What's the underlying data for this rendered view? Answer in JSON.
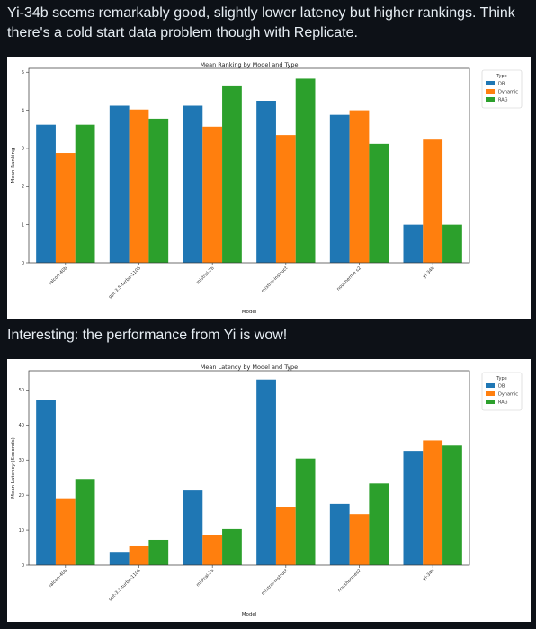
{
  "messages": {
    "first": "Yi-34b seems remarkably good, slightly lower latency but higher rankings. Think there's a cold start data problem though with Replicate.",
    "second": "Interesting: the performance from Yi is wow!"
  },
  "chart_data": [
    {
      "type": "bar",
      "title": "Mean Ranking by Model and Type",
      "xlabel": "Model",
      "ylabel": "Mean Ranking",
      "categories": [
        "falcon-40b",
        "gpt-3.5-turbo-1106",
        "mistral-7b",
        "mixtral-instruct",
        "nousherme s2",
        "yi-34b"
      ],
      "ylim": [
        0,
        5.1
      ],
      "yticks": [
        0,
        1,
        2,
        3,
        4,
        5
      ],
      "legend": {
        "title": "Type",
        "placement": "outside-top-right"
      },
      "series": [
        {
          "name": "DB",
          "color": "#1f77b4",
          "values": [
            3.62,
            4.12,
            4.12,
            4.25,
            3.88,
            1.0
          ]
        },
        {
          "name": "Dynamic",
          "color": "#ff7f0e",
          "values": [
            2.88,
            4.02,
            3.57,
            3.35,
            4.0,
            3.23
          ]
        },
        {
          "name": "RAG",
          "color": "#2ca02c",
          "values": [
            3.62,
            3.78,
            4.63,
            4.83,
            3.12,
            1.0
          ]
        }
      ]
    },
    {
      "type": "bar",
      "title": "Mean Latency by Model and Type",
      "xlabel": "Model",
      "ylabel": "Mean Latency (Seconds)",
      "categories": [
        "falcon-40b",
        "gpt-3.5-turbo-1106",
        "mistral-7b",
        "mixtral-instruct",
        "noushermes2",
        "yi-34b"
      ],
      "ylim": [
        0,
        55.5
      ],
      "yticks": [
        0,
        10,
        20,
        30,
        40,
        50
      ],
      "legend": {
        "title": "Type",
        "placement": "outside-top-right"
      },
      "series": [
        {
          "name": "DB",
          "color": "#1f77b4",
          "values": [
            47.2,
            3.8,
            21.3,
            53.0,
            17.5,
            32.6
          ]
        },
        {
          "name": "Dynamic",
          "color": "#ff7f0e",
          "values": [
            19.1,
            5.4,
            8.7,
            16.7,
            14.6,
            35.6
          ]
        },
        {
          "name": "RAG",
          "color": "#2ca02c",
          "values": [
            24.6,
            7.2,
            10.3,
            30.4,
            23.3,
            34.1
          ]
        }
      ]
    }
  ]
}
